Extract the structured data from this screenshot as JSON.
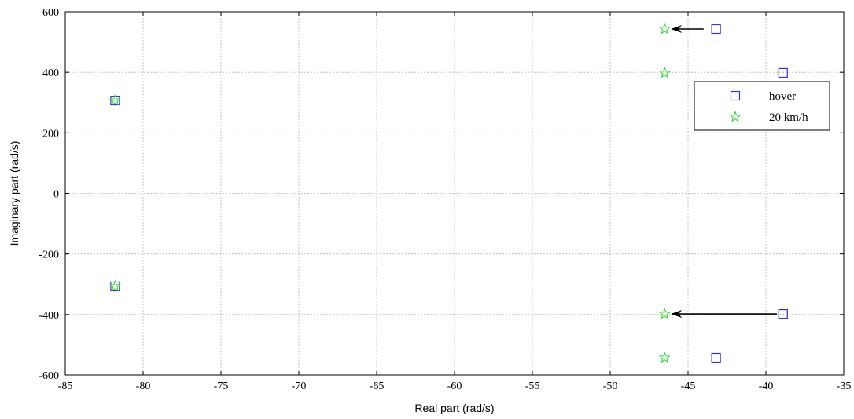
{
  "chart_data": {
    "type": "scatter",
    "title": "",
    "xlabel": "Real part (rad/s)",
    "ylabel": "Imaginary part (rad/s)",
    "xlim": [
      -85,
      -35
    ],
    "ylim": [
      -600,
      600
    ],
    "x_ticks": [
      -85,
      -80,
      -75,
      -70,
      -65,
      -60,
      -55,
      -50,
      -45,
      -40,
      -35
    ],
    "y_ticks": [
      -600,
      -400,
      -200,
      0,
      200,
      400,
      600
    ],
    "grid": true,
    "legend_position": "upper-right",
    "series": [
      {
        "name": "hover",
        "marker": "square",
        "color": "#3333dd",
        "points": [
          {
            "x": -81.8,
            "y": 307
          },
          {
            "x": -81.8,
            "y": -307
          },
          {
            "x": -43.2,
            "y": 543
          },
          {
            "x": -43.2,
            "y": -543
          },
          {
            "x": -38.9,
            "y": 398
          },
          {
            "x": -38.9,
            "y": -398
          }
        ]
      },
      {
        "name": "20 km/h",
        "marker": "star",
        "color": "#33dd33",
        "points": [
          {
            "x": -81.8,
            "y": 307
          },
          {
            "x": -81.8,
            "y": -307
          },
          {
            "x": -46.5,
            "y": 543
          },
          {
            "x": -46.5,
            "y": -543
          },
          {
            "x": -46.5,
            "y": 398
          },
          {
            "x": -46.5,
            "y": -398
          }
        ]
      }
    ],
    "annotations": [
      {
        "type": "arrow",
        "from": {
          "x": -44.0,
          "y": 543
        },
        "to": {
          "x": -46.0,
          "y": 543
        }
      },
      {
        "type": "arrow",
        "from": {
          "x": -39.3,
          "y": -398
        },
        "to": {
          "x": -46.0,
          "y": -398
        }
      }
    ]
  }
}
